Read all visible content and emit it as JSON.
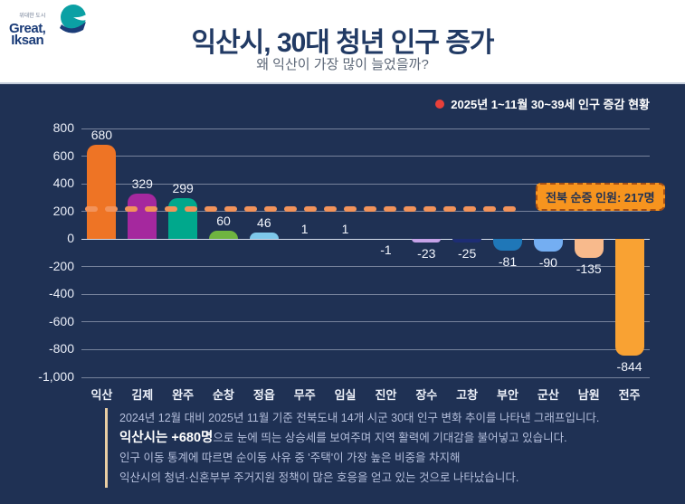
{
  "logo": {
    "tagline": "위대한 도시",
    "line1": "Great,",
    "line2": "Iksan"
  },
  "header": {
    "title": "익산시, 30대 청년 인구 증가",
    "subtitle": "왜 익산이 가장 많이 늘었을까?"
  },
  "legend": {
    "label": "2025년 1~11월 30~39세 인구 증감 현황",
    "dot_color": "#e8403a"
  },
  "chart_data": {
    "type": "bar",
    "categories": [
      "익산",
      "김제",
      "완주",
      "순창",
      "정읍",
      "무주",
      "임실",
      "진안",
      "장수",
      "고창",
      "부안",
      "군산",
      "남원",
      "전주"
    ],
    "values": [
      680,
      329,
      299,
      60,
      46,
      1,
      1,
      -1,
      -23,
      -25,
      -81,
      -90,
      -135,
      -844
    ],
    "bar_colors": [
      "#ee7425",
      "#a5289e",
      "#00a88c",
      "#6fb440",
      "#7ec8ea",
      null,
      null,
      null,
      "#c6a3e8",
      "#1d2d74",
      "#1f77b8",
      "#74aef2",
      "#f8ba8c",
      "#f9a233"
    ],
    "title": "2025년 1~11월 30~39세 인구 증감 현황",
    "xlabel": "",
    "ylabel": "",
    "ylim": [
      -1000,
      800
    ],
    "ytick_step": 200,
    "yticks": [
      "800",
      "600",
      "400",
      "200",
      "0",
      "-200",
      "-400",
      "-600",
      "-800",
      "-1,000"
    ],
    "grid": true,
    "legend_position": "top-right",
    "reference_line": {
      "value": 217,
      "label": "전북 순증 인원: 217명",
      "dash_color": "#f2935b",
      "box_bg": "#f7941e",
      "box_border": "#a34e14",
      "box_text_color": "#1f3154"
    }
  },
  "footer": {
    "line1": "2024년 12월 대비 2025년 11월 기준 전북도내 14개 시군 30대 인구 변화 추이를 나타낸 그래프입니다.",
    "line2_highlight": "익산시는 +680명",
    "line2_rest": "으로 눈에 띄는 상승세를 보여주며 지역 활력에 기대감을 불어넣고 있습니다.",
    "line3": "인구 이동 통계에 따르면 순이동 사유 중 '주택'이 가장 높은 비중을 차지해",
    "line4": "익산시의 청년·신혼부부 주거지원 정책이 많은 호응을 얻고 있는 것으로 나타났습니다."
  },
  "colors": {
    "page_background": "#1f3154",
    "header_background": "#ffffff",
    "title_text": "#213a64",
    "logo_teal": "#0ba0a4",
    "footer_accent_bar": "#e9cea4"
  }
}
